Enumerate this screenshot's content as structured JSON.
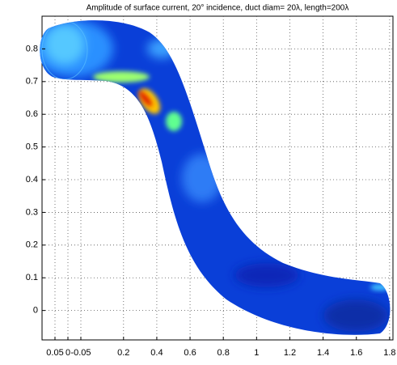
{
  "chart_data": {
    "type": "surface",
    "title": "Amplitude of surface current, 20° incidence, duct diam= 20λ, length=200λ",
    "xlim": [
      -0.29,
      1.82
    ],
    "xticks": [
      0.2,
      0.4,
      0.6,
      0.8,
      1,
      1.2,
      1.4,
      1.6,
      1.8
    ],
    "zlim": [
      0.05,
      -0.05
    ],
    "zticks": [
      0.05,
      0,
      -0.05
    ],
    "ylim": [
      -0.09,
      0.9
    ],
    "yticks": [
      0,
      0.1,
      0.2,
      0.3,
      0.4,
      0.5,
      0.6,
      0.7,
      0.8
    ],
    "grid": true
  }
}
